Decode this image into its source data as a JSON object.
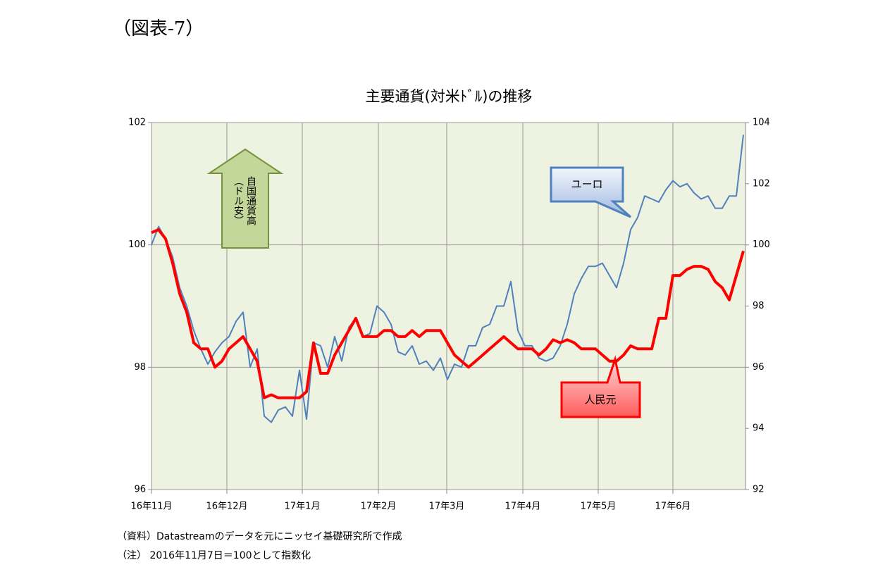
{
  "header": "（図表-7）",
  "chart_data": {
    "type": "line",
    "title": "主要通貨(対米ﾄﾞﾙ)の推移",
    "xlim": [
      0,
      84.3
    ],
    "xticks": [
      {
        "value": 0,
        "label": "16年11月"
      },
      {
        "value": 10.7,
        "label": "16年12月"
      },
      {
        "value": 21.4,
        "label": "17年1月"
      },
      {
        "value": 32.2,
        "label": "17年2月"
      },
      {
        "value": 41.9,
        "label": "17年3月"
      },
      {
        "value": 52.7,
        "label": "17年4月"
      },
      {
        "value": 63.4,
        "label": "17年5月"
      },
      {
        "value": 74.0,
        "label": "17年6月"
      }
    ],
    "ylim": [
      96,
      102
    ],
    "yticks": [
      96,
      98,
      100,
      102
    ],
    "y2lim": [
      92,
      104
    ],
    "y2ticks": [
      92,
      94,
      96,
      98,
      100,
      102,
      104
    ],
    "grid": true,
    "series": [
      {
        "name": "人民元",
        "color": "#ff0000",
        "axis": "y",
        "values": [
          100.2,
          100.25,
          100.1,
          99.7,
          99.2,
          98.9,
          98.4,
          98.3,
          98.3,
          98.0,
          98.1,
          98.3,
          98.4,
          98.5,
          98.3,
          98.1,
          97.5,
          97.55,
          97.5,
          97.5,
          97.5,
          97.5,
          97.6,
          98.4,
          97.9,
          97.9,
          98.2,
          98.4,
          98.6,
          98.8,
          98.5,
          98.5,
          98.5,
          98.6,
          98.6,
          98.5,
          98.5,
          98.6,
          98.5,
          98.6,
          98.6,
          98.6,
          98.4,
          98.2,
          98.1,
          98.0,
          98.1,
          98.2,
          98.3,
          98.4,
          98.5,
          98.4,
          98.3,
          98.3,
          98.3,
          98.2,
          98.3,
          98.45,
          98.4,
          98.45,
          98.4,
          98.3,
          98.3,
          98.3,
          98.2,
          98.1,
          98.1,
          98.2,
          98.35,
          98.3,
          98.3,
          98.3,
          98.8,
          98.8,
          99.5,
          99.5,
          99.6,
          99.65,
          99.65,
          99.6,
          99.4,
          99.3,
          99.1,
          99.5,
          99.9
        ]
      },
      {
        "name": "ユーロ",
        "color": "#4f81bd",
        "axis": "y2",
        "values": [
          100.0,
          100.6,
          100.2,
          99.6,
          98.6,
          98.0,
          97.2,
          96.6,
          96.1,
          96.5,
          96.8,
          97.0,
          97.5,
          97.8,
          96.0,
          96.6,
          94.4,
          94.2,
          94.6,
          94.7,
          94.4,
          95.9,
          94.3,
          96.8,
          96.7,
          96.0,
          97.0,
          96.2,
          97.3,
          97.6,
          97.0,
          97.1,
          98.0,
          97.8,
          97.4,
          96.5,
          96.4,
          96.7,
          96.1,
          96.2,
          95.9,
          96.3,
          95.6,
          96.1,
          96.0,
          96.7,
          96.7,
          97.3,
          97.4,
          98.0,
          98.0,
          98.8,
          97.2,
          96.7,
          96.7,
          96.3,
          96.2,
          96.3,
          96.7,
          97.4,
          98.4,
          98.9,
          99.3,
          99.3,
          99.4,
          99.0,
          98.6,
          99.4,
          100.5,
          100.9,
          101.6,
          101.5,
          101.4,
          101.8,
          102.1,
          101.9,
          102.0,
          101.7,
          101.5,
          101.6,
          101.2,
          101.2,
          101.6,
          101.6,
          103.6
        ]
      }
    ],
    "annotations": [
      "自国通貨高",
      "（ドル安）"
    ]
  },
  "notes": [
    "（資料）Datastreamのデータを元にニッセイ基礎研究所で作成",
    "（注） 2016年11月7日＝100として指数化"
  ]
}
